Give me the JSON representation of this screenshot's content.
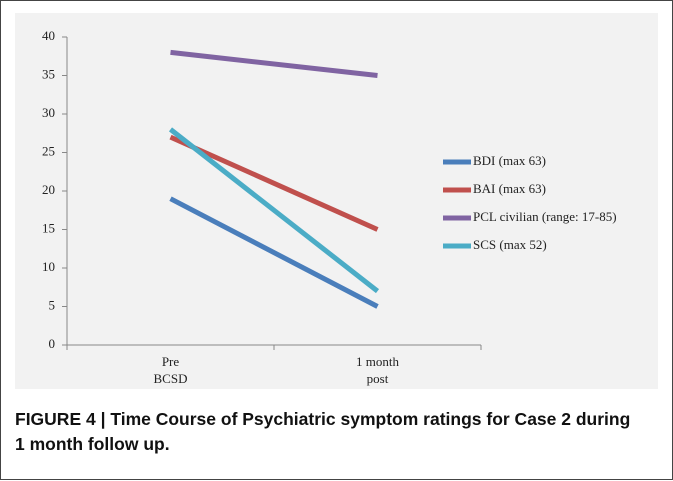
{
  "chart_data": {
    "type": "line",
    "categories": [
      "Pre\nBCSD",
      "1 month\npost"
    ],
    "series": [
      {
        "name": "BDI (max 63)",
        "color": "#4a7ebb",
        "values": [
          19,
          5
        ]
      },
      {
        "name": "BAI (max 63)",
        "color": "#c0504d",
        "values": [
          27,
          15
        ]
      },
      {
        "name": "PCL civilian (range: 17-85)",
        "color": "#8064a2",
        "values": [
          38,
          35
        ]
      },
      {
        "name": "SCS (max 52)",
        "color": "#4bacc6",
        "values": [
          28,
          7
        ]
      }
    ],
    "ylim": [
      0,
      40
    ],
    "yticks": [
      0,
      5,
      10,
      15,
      20,
      25,
      30,
      35,
      40
    ],
    "grid": false,
    "legend": "right",
    "caption": "FIGURE 4 | Time Course of Psychiatric symptom ratings for Case 2 during 1 month follow up."
  }
}
